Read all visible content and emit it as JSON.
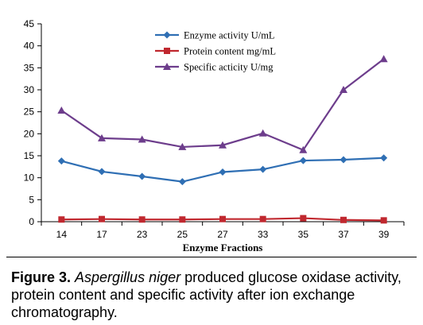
{
  "chart_data": {
    "type": "line",
    "categories": [
      "14",
      "17",
      "23",
      "25",
      "27",
      "33",
      "35",
      "37",
      "39"
    ],
    "series": [
      {
        "name": "Enzyme activity U/mL",
        "color": "#2f6fb4",
        "marker": "diamond",
        "values": [
          13.8,
          11.4,
          10.3,
          9.1,
          11.3,
          11.9,
          13.9,
          14.1,
          14.5
        ]
      },
      {
        "name": "Protein content mg/mL",
        "color": "#c0282f",
        "marker": "square",
        "values": [
          0.5,
          0.6,
          0.5,
          0.5,
          0.6,
          0.6,
          0.8,
          0.4,
          0.3
        ]
      },
      {
        "name": "Specific acticity U/mg",
        "color": "#6d3d8c",
        "marker": "triangle",
        "values": [
          25.3,
          19.0,
          18.7,
          17.0,
          17.4,
          20.1,
          16.3,
          30.0,
          37.0
        ]
      }
    ],
    "xlabel": "Enzyme Fractions",
    "ylabel": "",
    "ylim": [
      0,
      45
    ],
    "yticks": [
      0,
      5,
      10,
      15,
      20,
      25,
      30,
      35,
      40,
      45
    ],
    "grid": false,
    "legend_position": "top-center"
  },
  "caption": {
    "label": "Figure 3.",
    "italic": "Aspergillus niger",
    "rest": " produced glucose oxidase activity, protein content and specific activity after ion exchange chromatography."
  }
}
